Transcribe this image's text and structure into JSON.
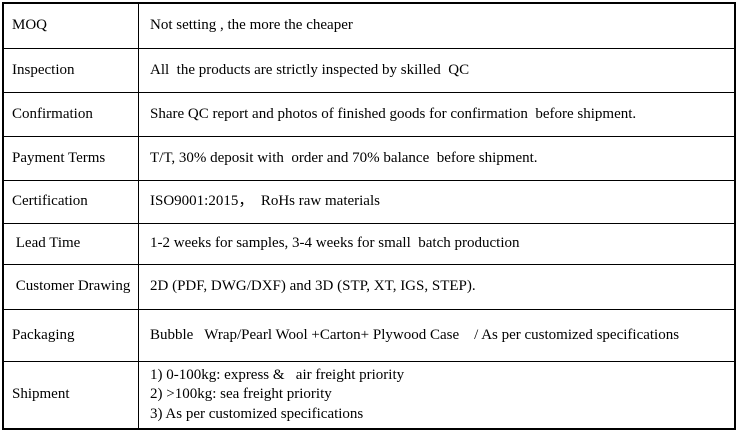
{
  "page": {
    "background_color": "#ffffff",
    "border_color": "#000000",
    "text_color": "#000000"
  },
  "table": {
    "rows": [
      {
        "label": "MOQ",
        "value": "Not setting , the more the cheaper"
      },
      {
        "label": "Inspection",
        "value": "All  the products are strictly inspected by skilled  QC"
      },
      {
        "label": "Confirmation",
        "value": "Share QC report and photos of finished goods for confirmation  before shipment."
      },
      {
        "label": "Payment Terms",
        "value": "T/T, 30% deposit with  order and 70% balance  before shipment."
      },
      {
        "label": "Certification",
        "value": "ISO9001:2015，  RoHs raw materials"
      },
      {
        "label": " Lead Time",
        "value": "1-2 weeks for samples, 3-4 weeks for small  batch production"
      },
      {
        "label": " Customer Drawing",
        "value": "2D (PDF, DWG/DXF) and 3D (STP, XT, IGS, STEP)."
      },
      {
        "label": "Packaging",
        "value": "Bubble   Wrap/Pearl Wool +Carton+ Plywood Case    / As per customized specifications"
      },
      {
        "label": "Shipment",
        "value": "1) 0-100kg: express &   air freight priority\n2) >100kg: sea freight priority\n3) As per customized specifications"
      }
    ]
  }
}
